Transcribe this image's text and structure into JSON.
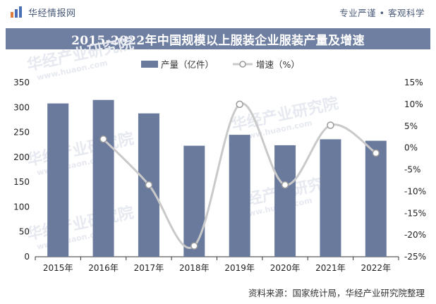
{
  "header": {
    "brand_name": "华经情报网",
    "slogan": "专业严谨 • 客观科学"
  },
  "watermark": {
    "text": "华经产业研究院",
    "url": "www.huaon.com"
  },
  "source_note": "资料来源：国家统计局，华经产业研究院整理",
  "colors": {
    "bar": "#6a7a9d",
    "line": "#c9c9c9",
    "title_bg": "#6f7fa1",
    "text": "#222222"
  },
  "chart_data": {
    "type": "bar",
    "title": "2015-2022年中国规模以上服装企业服装产量及增速",
    "categories": [
      "2015年",
      "2016年",
      "2017年",
      "2018年",
      "2019年",
      "2020年",
      "2021年",
      "2022年"
    ],
    "series": [
      {
        "name": "产量（亿件）",
        "type": "bar",
        "axis": "left",
        "values": [
          308,
          315,
          288,
          223,
          245,
          224,
          236,
          233
        ]
      },
      {
        "name": "增速（%）",
        "type": "line",
        "axis": "right",
        "values": [
          null,
          2.0,
          -8.5,
          -22.5,
          10.0,
          -8.5,
          5.2,
          -1.2
        ]
      }
    ],
    "y_left": {
      "min": 0,
      "max": 350,
      "step": 50,
      "ticks": [
        "0",
        "50",
        "100",
        "150",
        "200",
        "250",
        "300",
        "350"
      ]
    },
    "y_right": {
      "min": -25,
      "max": 15,
      "step": 5,
      "ticks": [
        "-25%",
        "-20%",
        "-15%",
        "-10%",
        "-5%",
        "0%",
        "5%",
        "10%",
        "15%"
      ]
    },
    "grid": false,
    "legend": "top-center"
  }
}
